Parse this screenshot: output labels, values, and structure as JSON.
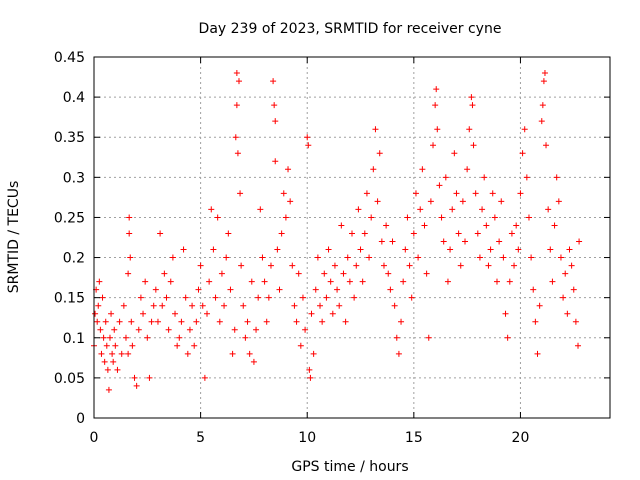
{
  "chart_data": {
    "type": "scatter",
    "title": "Day 239 of 2023, SRMTID for receiver cyne",
    "xlabel": "GPS time / hours",
    "ylabel": "SRMTID / TECUs",
    "xlim": [
      0,
      24.2
    ],
    "ylim": [
      0,
      0.45
    ],
    "xticks": [
      0,
      5,
      10,
      15,
      20
    ],
    "xtick_labels": [
      "0",
      "5",
      "10",
      "15",
      "20"
    ],
    "yticks": [
      0,
      0.05,
      0.1,
      0.15,
      0.2,
      0.25,
      0.3,
      0.35,
      0.4,
      0.45
    ],
    "ytick_labels": [
      "0",
      "0.05",
      "0.1",
      "0.15",
      "0.2",
      "0.25",
      "0.3",
      "0.35",
      "0.4",
      "0.45"
    ],
    "grid": true,
    "marker": "+",
    "color": "#ff0000",
    "series": [
      {
        "name": "cyne",
        "points": [
          [
            0.0,
            0.09
          ],
          [
            0.05,
            0.13
          ],
          [
            0.1,
            0.16
          ],
          [
            0.15,
            0.12
          ],
          [
            0.2,
            0.14
          ],
          [
            0.25,
            0.17
          ],
          [
            0.3,
            0.11
          ],
          [
            0.35,
            0.08
          ],
          [
            0.4,
            0.15
          ],
          [
            0.45,
            0.1
          ],
          [
            0.5,
            0.07
          ],
          [
            0.55,
            0.12
          ],
          [
            0.6,
            0.09
          ],
          [
            0.65,
            0.06
          ],
          [
            0.7,
            0.035
          ],
          [
            0.75,
            0.1
          ],
          [
            0.8,
            0.13
          ],
          [
            0.85,
            0.08
          ],
          [
            0.9,
            0.07
          ],
          [
            0.95,
            0.11
          ],
          [
            1.0,
            0.09
          ],
          [
            1.1,
            0.06
          ],
          [
            1.2,
            0.12
          ],
          [
            1.3,
            0.08
          ],
          [
            1.4,
            0.14
          ],
          [
            1.5,
            0.1
          ],
          [
            1.6,
            0.18
          ],
          [
            1.6,
            0.08
          ],
          [
            1.65,
            0.25
          ],
          [
            1.65,
            0.23
          ],
          [
            1.7,
            0.2
          ],
          [
            1.75,
            0.12
          ],
          [
            1.8,
            0.09
          ],
          [
            1.9,
            0.05
          ],
          [
            2.0,
            0.04
          ],
          [
            2.1,
            0.11
          ],
          [
            2.2,
            0.15
          ],
          [
            2.3,
            0.13
          ],
          [
            2.4,
            0.17
          ],
          [
            2.5,
            0.1
          ],
          [
            2.6,
            0.05
          ],
          [
            2.7,
            0.12
          ],
          [
            2.8,
            0.14
          ],
          [
            2.9,
            0.16
          ],
          [
            3.0,
            0.12
          ],
          [
            3.1,
            0.23
          ],
          [
            3.2,
            0.14
          ],
          [
            3.3,
            0.18
          ],
          [
            3.4,
            0.15
          ],
          [
            3.5,
            0.11
          ],
          [
            3.6,
            0.17
          ],
          [
            3.7,
            0.2
          ],
          [
            3.8,
            0.13
          ],
          [
            3.9,
            0.09
          ],
          [
            4.0,
            0.1
          ],
          [
            4.1,
            0.12
          ],
          [
            4.2,
            0.21
          ],
          [
            4.3,
            0.15
          ],
          [
            4.4,
            0.08
          ],
          [
            4.5,
            0.11
          ],
          [
            4.6,
            0.14
          ],
          [
            4.7,
            0.09
          ],
          [
            4.8,
            0.12
          ],
          [
            4.9,
            0.16
          ],
          [
            5.0,
            0.19
          ],
          [
            5.1,
            0.14
          ],
          [
            5.2,
            0.05
          ],
          [
            5.3,
            0.13
          ],
          [
            5.4,
            0.17
          ],
          [
            5.5,
            0.26
          ],
          [
            5.6,
            0.21
          ],
          [
            5.7,
            0.15
          ],
          [
            5.8,
            0.25
          ],
          [
            5.9,
            0.12
          ],
          [
            6.0,
            0.18
          ],
          [
            6.1,
            0.14
          ],
          [
            6.2,
            0.2
          ],
          [
            6.3,
            0.23
          ],
          [
            6.4,
            0.16
          ],
          [
            6.5,
            0.08
          ],
          [
            6.6,
            0.11
          ],
          [
            6.65,
            0.35
          ],
          [
            6.7,
            0.43
          ],
          [
            6.7,
            0.39
          ],
          [
            6.75,
            0.33
          ],
          [
            6.8,
            0.42
          ],
          [
            6.85,
            0.28
          ],
          [
            6.9,
            0.19
          ],
          [
            7.0,
            0.14
          ],
          [
            7.1,
            0.1
          ],
          [
            7.2,
            0.12
          ],
          [
            7.3,
            0.08
          ],
          [
            7.4,
            0.17
          ],
          [
            7.5,
            0.07
          ],
          [
            7.6,
            0.11
          ],
          [
            7.7,
            0.15
          ],
          [
            7.8,
            0.26
          ],
          [
            7.9,
            0.2
          ],
          [
            8.0,
            0.17
          ],
          [
            8.1,
            0.12
          ],
          [
            8.2,
            0.15
          ],
          [
            8.3,
            0.19
          ],
          [
            8.4,
            0.42
          ],
          [
            8.45,
            0.39
          ],
          [
            8.5,
            0.37
          ],
          [
            8.5,
            0.32
          ],
          [
            8.6,
            0.21
          ],
          [
            8.7,
            0.16
          ],
          [
            8.8,
            0.23
          ],
          [
            8.9,
            0.28
          ],
          [
            9.0,
            0.25
          ],
          [
            9.1,
            0.31
          ],
          [
            9.2,
            0.27
          ],
          [
            9.3,
            0.19
          ],
          [
            9.4,
            0.14
          ],
          [
            9.5,
            0.12
          ],
          [
            9.6,
            0.18
          ],
          [
            9.7,
            0.09
          ],
          [
            9.8,
            0.15
          ],
          [
            9.9,
            0.11
          ],
          [
            10.0,
            0.35
          ],
          [
            10.05,
            0.34
          ],
          [
            10.1,
            0.06
          ],
          [
            10.15,
            0.05
          ],
          [
            10.2,
            0.13
          ],
          [
            10.3,
            0.08
          ],
          [
            10.4,
            0.16
          ],
          [
            10.5,
            0.2
          ],
          [
            10.6,
            0.14
          ],
          [
            10.7,
            0.12
          ],
          [
            10.8,
            0.18
          ],
          [
            10.9,
            0.15
          ],
          [
            11.0,
            0.21
          ],
          [
            11.1,
            0.17
          ],
          [
            11.2,
            0.13
          ],
          [
            11.3,
            0.19
          ],
          [
            11.4,
            0.16
          ],
          [
            11.5,
            0.14
          ],
          [
            11.6,
            0.24
          ],
          [
            11.7,
            0.18
          ],
          [
            11.8,
            0.12
          ],
          [
            11.9,
            0.2
          ],
          [
            12.0,
            0.17
          ],
          [
            12.1,
            0.23
          ],
          [
            12.2,
            0.15
          ],
          [
            12.3,
            0.19
          ],
          [
            12.4,
            0.26
          ],
          [
            12.5,
            0.21
          ],
          [
            12.6,
            0.17
          ],
          [
            12.7,
            0.23
          ],
          [
            12.8,
            0.28
          ],
          [
            12.9,
            0.2
          ],
          [
            13.0,
            0.25
          ],
          [
            13.1,
            0.31
          ],
          [
            13.2,
            0.36
          ],
          [
            13.3,
            0.27
          ],
          [
            13.4,
            0.33
          ],
          [
            13.5,
            0.22
          ],
          [
            13.6,
            0.19
          ],
          [
            13.7,
            0.24
          ],
          [
            13.8,
            0.18
          ],
          [
            13.9,
            0.16
          ],
          [
            14.0,
            0.22
          ],
          [
            14.1,
            0.14
          ],
          [
            14.2,
            0.1
          ],
          [
            14.3,
            0.08
          ],
          [
            14.4,
            0.12
          ],
          [
            14.5,
            0.17
          ],
          [
            14.6,
            0.21
          ],
          [
            14.7,
            0.25
          ],
          [
            14.8,
            0.19
          ],
          [
            14.9,
            0.15
          ],
          [
            15.0,
            0.23
          ],
          [
            15.1,
            0.28
          ],
          [
            15.2,
            0.2
          ],
          [
            15.3,
            0.26
          ],
          [
            15.4,
            0.31
          ],
          [
            15.5,
            0.24
          ],
          [
            15.6,
            0.18
          ],
          [
            15.7,
            0.1
          ],
          [
            15.8,
            0.27
          ],
          [
            15.9,
            0.34
          ],
          [
            16.0,
            0.39
          ],
          [
            16.05,
            0.41
          ],
          [
            16.1,
            0.36
          ],
          [
            16.2,
            0.29
          ],
          [
            16.3,
            0.25
          ],
          [
            16.4,
            0.22
          ],
          [
            16.5,
            0.3
          ],
          [
            16.6,
            0.17
          ],
          [
            16.7,
            0.21
          ],
          [
            16.8,
            0.26
          ],
          [
            16.9,
            0.33
          ],
          [
            17.0,
            0.28
          ],
          [
            17.1,
            0.23
          ],
          [
            17.2,
            0.19
          ],
          [
            17.3,
            0.27
          ],
          [
            17.4,
            0.22
          ],
          [
            17.5,
            0.31
          ],
          [
            17.6,
            0.36
          ],
          [
            17.7,
            0.4
          ],
          [
            17.75,
            0.39
          ],
          [
            17.8,
            0.34
          ],
          [
            17.9,
            0.28
          ],
          [
            18.0,
            0.23
          ],
          [
            18.1,
            0.2
          ],
          [
            18.2,
            0.26
          ],
          [
            18.3,
            0.3
          ],
          [
            18.4,
            0.24
          ],
          [
            18.5,
            0.19
          ],
          [
            18.6,
            0.21
          ],
          [
            18.7,
            0.28
          ],
          [
            18.8,
            0.25
          ],
          [
            18.9,
            0.17
          ],
          [
            19.0,
            0.22
          ],
          [
            19.1,
            0.27
          ],
          [
            19.2,
            0.2
          ],
          [
            19.3,
            0.13
          ],
          [
            19.4,
            0.1
          ],
          [
            19.5,
            0.17
          ],
          [
            19.6,
            0.23
          ],
          [
            19.7,
            0.19
          ],
          [
            19.8,
            0.24
          ],
          [
            19.9,
            0.21
          ],
          [
            20.0,
            0.28
          ],
          [
            20.1,
            0.33
          ],
          [
            20.2,
            0.36
          ],
          [
            20.3,
            0.3
          ],
          [
            20.4,
            0.25
          ],
          [
            20.5,
            0.2
          ],
          [
            20.6,
            0.16
          ],
          [
            20.7,
            0.12
          ],
          [
            20.8,
            0.08
          ],
          [
            20.9,
            0.14
          ],
          [
            21.0,
            0.37
          ],
          [
            21.05,
            0.39
          ],
          [
            21.1,
            0.42
          ],
          [
            21.15,
            0.43
          ],
          [
            21.2,
            0.34
          ],
          [
            21.3,
            0.26
          ],
          [
            21.4,
            0.21
          ],
          [
            21.5,
            0.17
          ],
          [
            21.6,
            0.24
          ],
          [
            21.7,
            0.3
          ],
          [
            21.8,
            0.27
          ],
          [
            21.9,
            0.2
          ],
          [
            22.0,
            0.15
          ],
          [
            22.1,
            0.18
          ],
          [
            22.2,
            0.13
          ],
          [
            22.3,
            0.21
          ],
          [
            22.4,
            0.19
          ],
          [
            22.5,
            0.16
          ],
          [
            22.6,
            0.12
          ],
          [
            22.7,
            0.09
          ],
          [
            22.75,
            0.22
          ]
        ]
      }
    ]
  }
}
